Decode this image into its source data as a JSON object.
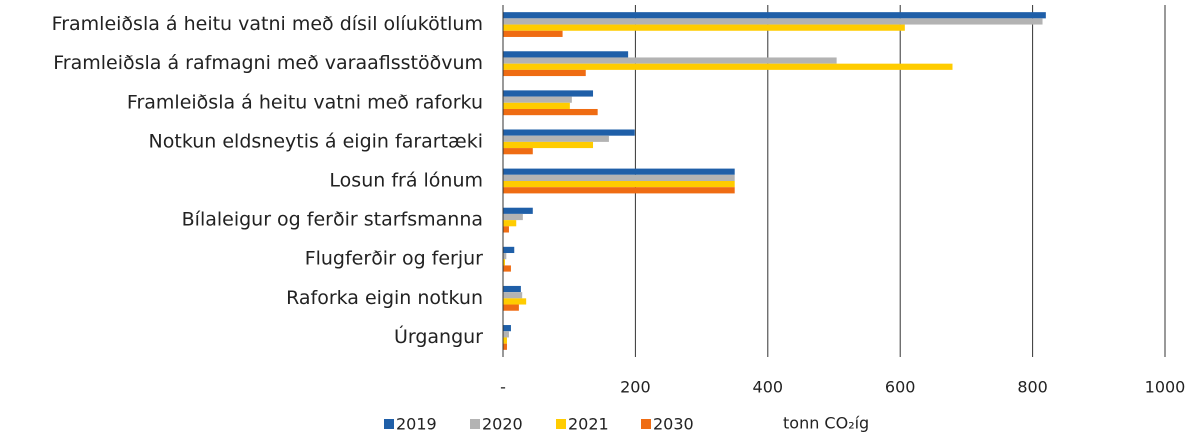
{
  "chart_data": {
    "type": "hbar",
    "categories": [
      "Framleiðsla á heitu vatni með dísil olíukötlum",
      "Framleiðsla á rafmagni með varaaflsstöðvum",
      "Framleiðsla á heitu vatni með raforku",
      "Notkun eldsneytis á eigin farartæki",
      "Losun frá lónum",
      "Bílaleigur og ferðir starfsmanna",
      "Flugferðir og ferjur",
      "Raforka eigin notkun",
      "Úrgangur"
    ],
    "series": [
      {
        "name": "2019",
        "color": "#1f5fa8",
        "values": [
          820,
          189,
          136,
          199,
          350,
          45,
          17,
          27,
          12
        ]
      },
      {
        "name": "2020",
        "color": "#b3b3b3",
        "values": [
          815,
          504,
          104,
          160,
          350,
          30,
          5,
          29,
          9
        ]
      },
      {
        "name": "2021",
        "color": "#ffcc00",
        "values": [
          607,
          679,
          101,
          136,
          350,
          20,
          3,
          35,
          6
        ]
      },
      {
        "name": "2030",
        "color": "#ef6c13",
        "values": [
          90,
          125,
          143,
          45,
          350,
          9,
          12,
          24,
          6
        ]
      }
    ],
    "xlabel": "tonn CO₂íg",
    "xlim": [
      0,
      1000
    ],
    "xticks": [
      {
        "value": 0,
        "label": "-"
      },
      200,
      400,
      600,
      800,
      1000
    ],
    "grid": true,
    "legend": "bottom"
  }
}
